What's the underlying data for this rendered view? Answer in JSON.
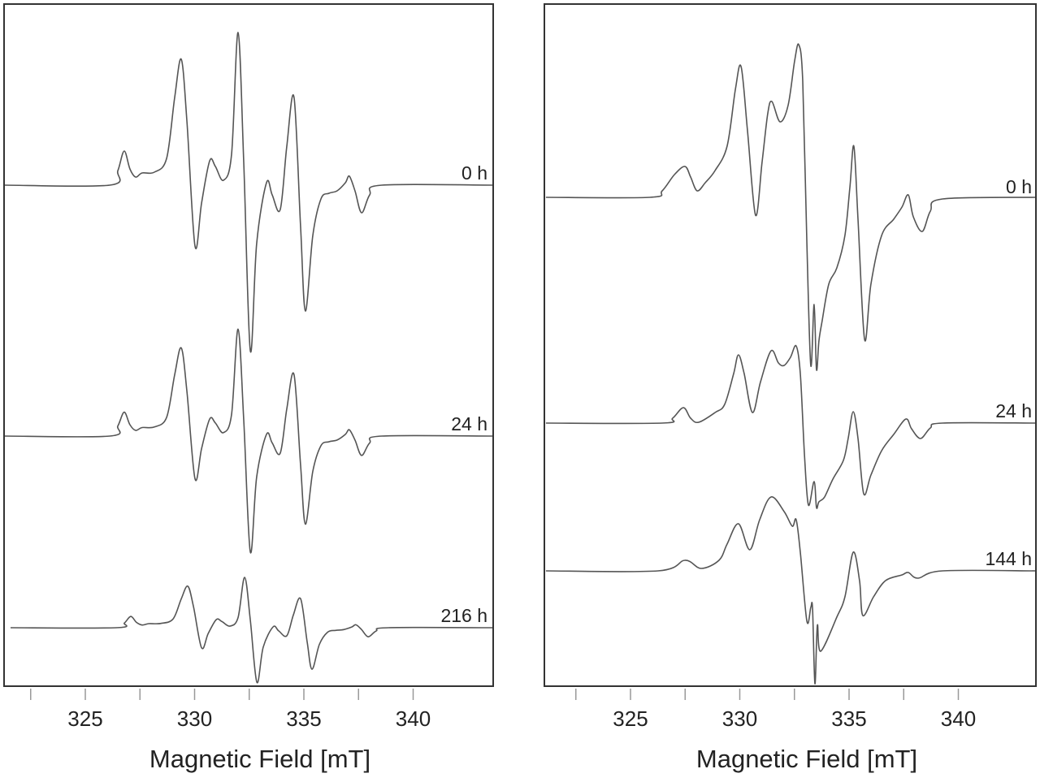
{
  "chart_data": [
    {
      "type": "line",
      "title": "",
      "xlabel": "Magnetic Field [mT]",
      "ylabel": "",
      "xlim": [
        321.2,
        343.6
      ],
      "xticks": [
        325,
        330,
        335,
        340
      ],
      "xtick_labels": [
        "325",
        "330",
        "335",
        "340"
      ],
      "minor_xticks": [
        322.5,
        327.5,
        332.5,
        337.5
      ],
      "grid": false,
      "base_spectrum": {
        "x": [
          321.28,
          326.12,
          326.49,
          326.78,
          327.04,
          327.3,
          327.6,
          328.16,
          328.72,
          329.09,
          329.39,
          329.65,
          330.02,
          330.32,
          330.69,
          330.95,
          331.32,
          331.69,
          331.99,
          332.25,
          332.55,
          332.84,
          333.29,
          333.55,
          333.92,
          334.22,
          334.55,
          334.85,
          335.07,
          335.41,
          335.78,
          336.15,
          336.52,
          336.9,
          337.08,
          337.34,
          337.64,
          338.01,
          338.57,
          343.66
        ],
        "y": [
          0,
          0,
          0.18,
          0.42,
          0.2,
          0.1,
          0.15,
          0.16,
          0.33,
          1.08,
          1.55,
          0.78,
          -0.75,
          -0.22,
          0.3,
          0.23,
          0.06,
          0.38,
          1.88,
          0.28,
          -2.04,
          -0.72,
          0.03,
          -0.12,
          -0.3,
          0.48,
          1.08,
          -0.52,
          -1.55,
          -0.62,
          -0.17,
          -0.1,
          -0.07,
          0.03,
          0.11,
          -0.07,
          -0.34,
          -0.12,
          0,
          0
        ]
      },
      "series": [
        {
          "name": "0 h",
          "intensity_scale": 1.0,
          "field_shift": 0.0
        },
        {
          "name": "24 h",
          "intensity_scale": 0.7,
          "field_shift": 0.0
        },
        {
          "name": "216 h",
          "intensity_scale": 0.33,
          "field_shift": 0.3
        }
      ]
    },
    {
      "type": "line",
      "title": "",
      "xlabel": "Magnetic Field [mT]",
      "ylabel": "",
      "xlim": [
        321.1,
        343.6
      ],
      "xticks": [
        325,
        330,
        335,
        340
      ],
      "xtick_labels": [
        "325",
        "330",
        "335",
        "340"
      ],
      "minor_xticks": [
        322.5,
        327.5,
        332.5,
        337.5
      ],
      "grid": false,
      "series": [
        {
          "name": "0 h",
          "x": [
            321.13,
            325.89,
            326.45,
            327.01,
            327.49,
            327.75,
            328.05,
            328.42,
            328.87,
            329.42,
            329.8,
            330.06,
            330.35,
            330.72,
            331.02,
            331.28,
            331.47,
            331.84,
            332.21,
            332.51,
            332.7,
            332.88,
            333.07,
            333.25,
            333.4,
            333.51,
            333.62,
            333.77,
            334.07,
            334.44,
            334.81,
            335.04,
            335.22,
            335.41,
            335.71,
            336.0,
            336.49,
            337.04,
            337.42,
            337.71,
            337.94,
            338.35,
            338.72,
            339.28,
            343.55
          ],
          "y": [
            0,
            0,
            0.08,
            0.28,
            0.38,
            0.25,
            0.08,
            0.18,
            0.33,
            0.63,
            1.33,
            1.61,
            0.83,
            -0.22,
            0.43,
            1.03,
            1.18,
            0.93,
            1.13,
            1.68,
            1.88,
            1.43,
            -0.57,
            -2.07,
            -1.32,
            -2.12,
            -1.77,
            -1.52,
            -1.07,
            -0.87,
            -0.47,
            0.13,
            0.63,
            -0.27,
            -1.75,
            -1.07,
            -0.47,
            -0.27,
            -0.12,
            0.03,
            -0.24,
            -0.42,
            -0.17,
            -0.02,
            0
          ]
        },
        {
          "name": "24 h",
          "x": [
            321.13,
            326.45,
            326.93,
            327.42,
            327.75,
            328.12,
            328.87,
            329.31,
            329.72,
            329.94,
            330.2,
            330.58,
            330.95,
            331.43,
            331.77,
            332.03,
            332.32,
            332.58,
            332.77,
            332.96,
            333.14,
            333.4,
            333.51,
            333.62,
            333.88,
            334.26,
            334.74,
            334.96,
            335.19,
            335.41,
            335.67,
            336.0,
            336.49,
            337.04,
            337.6,
            337.86,
            338.27,
            338.72,
            339.28,
            343.55
          ],
          "y": [
            0,
            0,
            0.06,
            0.19,
            0.06,
            0.01,
            0.13,
            0.23,
            0.61,
            0.84,
            0.61,
            0.13,
            0.51,
            0.89,
            0.74,
            0.71,
            0.81,
            0.95,
            0.61,
            -0.39,
            -1.01,
            -0.72,
            -1.04,
            -0.97,
            -0.91,
            -0.69,
            -0.46,
            -0.19,
            0.14,
            -0.19,
            -0.87,
            -0.64,
            -0.34,
            -0.14,
            0.05,
            -0.07,
            -0.19,
            -0.06,
            0,
            0
          ]
        },
        {
          "name": "144 h",
          "x": [
            321.13,
            326.26,
            327.49,
            328.23,
            329.05,
            329.42,
            329.94,
            330.46,
            330.91,
            331.43,
            332.03,
            332.4,
            332.58,
            332.77,
            333.07,
            333.25,
            333.33,
            333.44,
            333.55,
            333.7,
            334.44,
            334.81,
            335.19,
            335.48,
            335.63,
            336.12,
            336.67,
            337.42,
            337.71,
            338.16,
            339.28,
            343.55
          ],
          "y": [
            0,
            0,
            0.13,
            0.03,
            0.13,
            0.33,
            0.58,
            0.26,
            0.63,
            0.91,
            0.73,
            0.55,
            0.63,
            0.23,
            -0.62,
            -0.45,
            -0.47,
            -1.39,
            -0.67,
            -0.99,
            -0.57,
            -0.32,
            0.23,
            -0.12,
            -0.55,
            -0.32,
            -0.12,
            -0.05,
            -0.02,
            -0.09,
            0,
            0
          ]
        }
      ]
    }
  ]
}
